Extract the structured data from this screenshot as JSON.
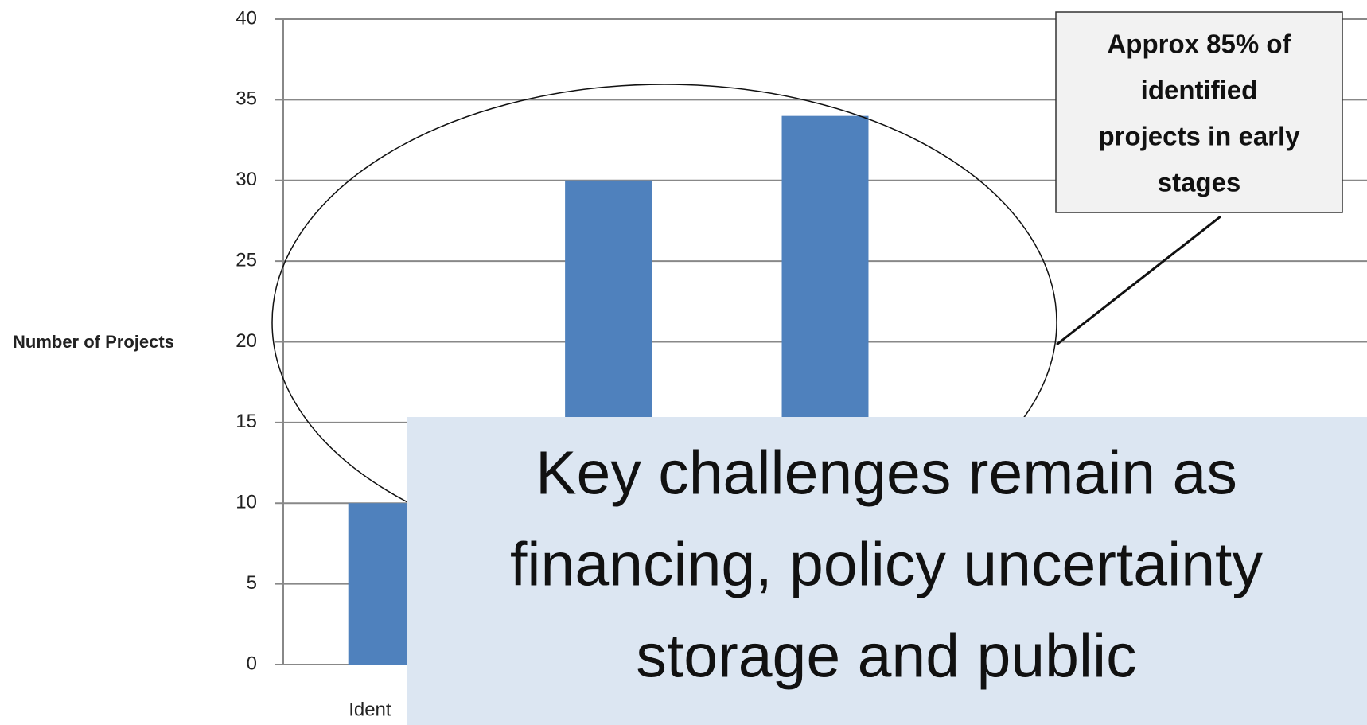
{
  "chart_data": {
    "type": "bar",
    "y_label": "Number of Projects",
    "categories": [
      "Ident",
      null,
      null,
      null,
      null
    ],
    "values": [
      10,
      30,
      34,
      null,
      null
    ],
    "color": "#4f81bd",
    "ylim": [
      0,
      40
    ],
    "yticks": [
      0,
      5,
      10,
      15,
      20,
      25,
      30,
      35,
      40
    ],
    "grid": true,
    "annotation": [
      "Approx 85% of",
      "identified",
      "projects in early",
      "stages"
    ],
    "overlay_text": [
      "Key challenges remain as",
      "financing, policy uncertainty",
      "storage and public"
    ]
  }
}
